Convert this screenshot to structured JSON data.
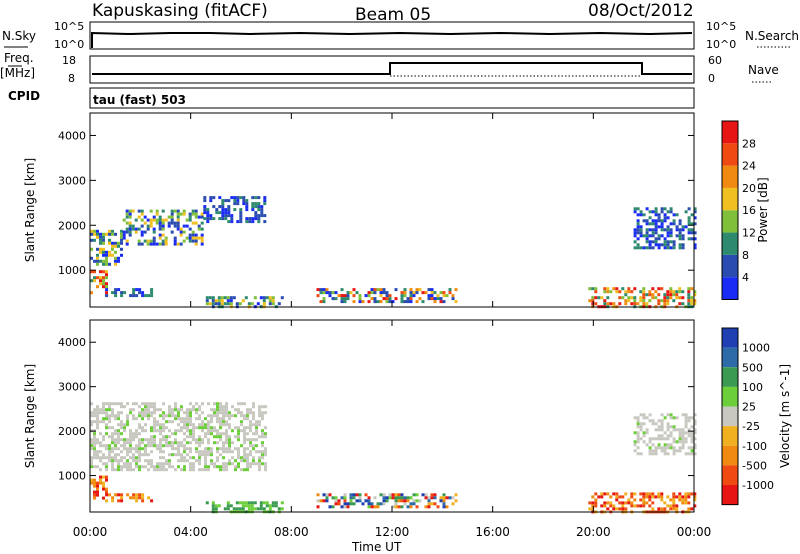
{
  "header": {
    "station": "Kapuskasing (fitACF)",
    "beam": "Beam 05",
    "date": "08/Oct/2012"
  },
  "small_panels": {
    "nsky": {
      "label": "N.Sky",
      "ticks": [
        "10^5",
        "10^0"
      ]
    },
    "nsearch": {
      "label": "N.Search",
      "ticks": [
        "10^5",
        "10^0"
      ]
    },
    "freq": {
      "label": "Freq.",
      "unit": "[MHz]",
      "ticks": [
        "18",
        "8"
      ]
    },
    "nave": {
      "label": "Nave",
      "ticks": [
        "60",
        "0"
      ]
    },
    "cpid": {
      "label": "CPID",
      "text": "tau (fast) 503"
    }
  },
  "x_axis": {
    "label": "Time UT",
    "ticks": [
      "00:00",
      "04:00",
      "08:00",
      "12:00",
      "16:00",
      "20:00",
      "00:00"
    ]
  },
  "chart_data": [
    {
      "type": "heatmap",
      "name": "power",
      "xlabel": "Time UT",
      "ylabel": "Slant Range [km]",
      "colorbar_label": "Power [dB]",
      "x_range_hours": [
        0,
        24
      ],
      "ylim": [
        180,
        4500
      ],
      "yticks": [
        1000,
        2000,
        3000,
        4000
      ],
      "colorbar_ticks": [
        "4",
        "8",
        "12",
        "16",
        "20",
        "24",
        "28"
      ],
      "colorbar_colors": [
        "#1a2bf5",
        "#2a4bb0",
        "#2e8a6e",
        "#7fbf3a",
        "#f0c020",
        "#f08a10",
        "#ef4a12",
        "#e81515"
      ],
      "regions": [
        {
          "t0": 0.0,
          "t1": 1.3,
          "r0": 1150,
          "r1": 1900,
          "tone": "mid"
        },
        {
          "t0": 1.3,
          "t1": 4.5,
          "r0": 1600,
          "r1": 2350,
          "tone": "mid"
        },
        {
          "t0": 4.5,
          "t1": 7.0,
          "r0": 2100,
          "r1": 2650,
          "tone": "low"
        },
        {
          "t0": 0.0,
          "t1": 0.6,
          "r0": 500,
          "r1": 1000,
          "tone": "high"
        },
        {
          "t0": 0.6,
          "t1": 2.4,
          "r0": 450,
          "r1": 600,
          "tone": "low"
        },
        {
          "t0": 4.6,
          "t1": 7.6,
          "r0": 200,
          "r1": 420,
          "tone": "mid"
        },
        {
          "t0": 9.0,
          "t1": 14.5,
          "r0": 300,
          "r1": 600,
          "tone": "mixed"
        },
        {
          "t0": 19.8,
          "t1": 24.0,
          "r0": 200,
          "r1": 620,
          "tone": "high"
        },
        {
          "t0": 21.6,
          "t1": 24.0,
          "r0": 1500,
          "r1": 2400,
          "tone": "low"
        }
      ]
    },
    {
      "type": "heatmap",
      "name": "velocity",
      "xlabel": "Time UT",
      "ylabel": "Slant Range [km]",
      "colorbar_label": "Velocity [m s^-1]",
      "x_range_hours": [
        0,
        24
      ],
      "ylim": [
        180,
        4500
      ],
      "yticks": [
        1000,
        2000,
        3000,
        4000
      ],
      "colorbar_ticks": [
        "1000",
        "500",
        "100",
        "25",
        "-25",
        "-100",
        "-500",
        "-1000"
      ],
      "colorbar_colors": [
        "#1f3fb2",
        "#2c6aa8",
        "#3a9a52",
        "#6ccf3a",
        "#c8c8c0",
        "#f0b020",
        "#f08a10",
        "#ef4a12",
        "#e81515"
      ],
      "regions": [
        {
          "t0": 0.0,
          "t1": 7.0,
          "r0": 1150,
          "r1": 2650,
          "tone": "gray"
        },
        {
          "t0": 0.0,
          "t1": 0.6,
          "r0": 500,
          "r1": 1000,
          "tone": "neg"
        },
        {
          "t0": 0.6,
          "t1": 2.4,
          "r0": 450,
          "r1": 600,
          "tone": "neg"
        },
        {
          "t0": 4.6,
          "t1": 7.6,
          "r0": 200,
          "r1": 420,
          "tone": "pos"
        },
        {
          "t0": 9.0,
          "t1": 14.5,
          "r0": 300,
          "r1": 600,
          "tone": "mixed"
        },
        {
          "t0": 19.8,
          "t1": 24.0,
          "r0": 200,
          "r1": 620,
          "tone": "neg"
        },
        {
          "t0": 21.6,
          "t1": 24.0,
          "r0": 1500,
          "r1": 2400,
          "tone": "gray"
        }
      ]
    }
  ]
}
